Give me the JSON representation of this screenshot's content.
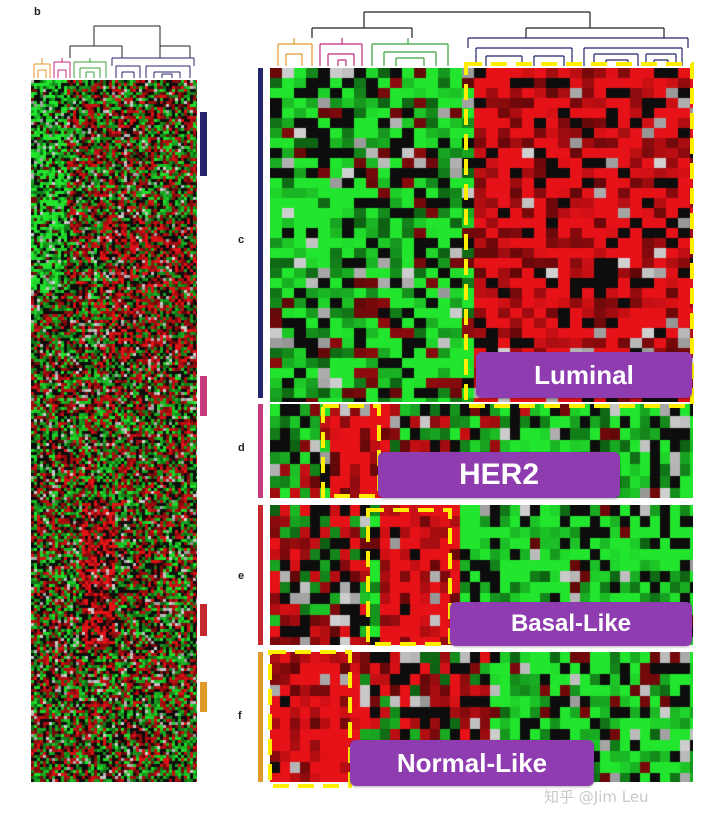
{
  "panel_labels": {
    "b": "b",
    "c": "c",
    "d": "d",
    "e": "e",
    "f": "f"
  },
  "subtypes": [
    {
      "key": "luminal",
      "label": "Luminal",
      "color": "#24246e"
    },
    {
      "key": "her2",
      "label": "HER2",
      "color": "#c43a7a"
    },
    {
      "key": "basal",
      "label": "Basal-Like",
      "color": "#c4282e"
    },
    {
      "key": "normal",
      "label": "Normal-Like",
      "color": "#e09a2a"
    }
  ],
  "colors": {
    "heat_red": "#c8141c",
    "heat_green": "#2fae3a",
    "heat_black": "#0d0d0d",
    "heat_gray": "#a9a9a9",
    "highlight_dash": "#ffee00",
    "callout_bg": "#8e3cb0",
    "dendro_orange": "#e09a2a",
    "dendro_pink": "#c4287e",
    "dendro_green": "#3aa03a",
    "dendro_blue": "#24246e",
    "dendro_black": "#222222"
  },
  "watermark": "知乎 @Jim Leu"
}
